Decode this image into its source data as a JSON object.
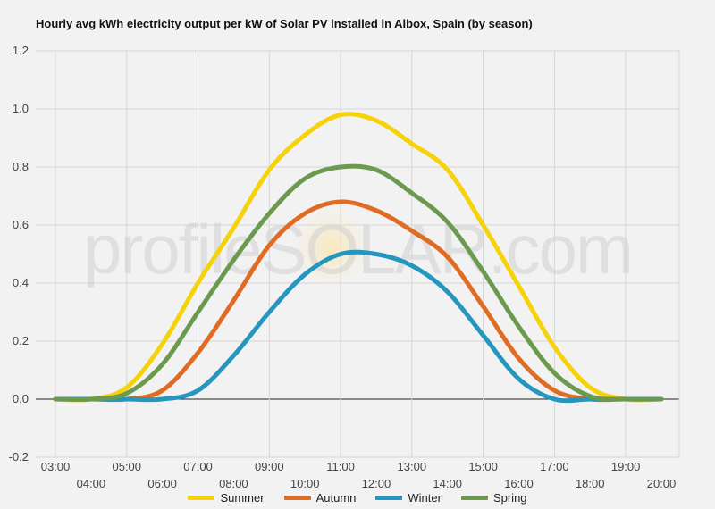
{
  "chart_data": {
    "type": "line",
    "title": "Hourly avg kWh electricity output per kW of Solar PV installed in Albox, Spain (by season)",
    "watermark": "profileSOLAR.com",
    "x_categories": [
      "03:00",
      "04:00",
      "05:00",
      "06:00",
      "07:00",
      "08:00",
      "09:00",
      "10:00",
      "11:00",
      "12:00",
      "13:00",
      "14:00",
      "15:00",
      "16:00",
      "17:00",
      "18:00",
      "19:00",
      "20:00"
    ],
    "ylim": [
      -0.2,
      1.2
    ],
    "yticks": [
      "-0.2",
      "0.0",
      "0.2",
      "0.4",
      "0.6",
      "0.8",
      "1.0",
      "1.2"
    ],
    "grid": true,
    "legend_position": "bottom",
    "series": [
      {
        "name": "Summer",
        "color": "#f5d20a",
        "values": [
          0.0,
          0.0,
          0.04,
          0.19,
          0.4,
          0.59,
          0.79,
          0.91,
          0.98,
          0.96,
          0.88,
          0.79,
          0.6,
          0.39,
          0.18,
          0.04,
          0.0,
          0.0
        ]
      },
      {
        "name": "Autumn",
        "color": "#e06c24",
        "values": [
          0.0,
          0.0,
          0.0,
          0.03,
          0.16,
          0.34,
          0.53,
          0.64,
          0.68,
          0.65,
          0.58,
          0.49,
          0.32,
          0.14,
          0.03,
          0.0,
          0.0,
          0.0
        ]
      },
      {
        "name": "Winter",
        "color": "#2596be",
        "values": [
          0.0,
          0.0,
          0.0,
          0.0,
          0.03,
          0.15,
          0.3,
          0.43,
          0.5,
          0.5,
          0.46,
          0.37,
          0.22,
          0.07,
          0.0,
          0.0,
          0.0,
          0.0
        ]
      },
      {
        "name": "Spring",
        "color": "#6b9a4e",
        "values": [
          0.0,
          0.0,
          0.02,
          0.12,
          0.3,
          0.48,
          0.64,
          0.76,
          0.8,
          0.79,
          0.71,
          0.61,
          0.44,
          0.25,
          0.09,
          0.01,
          0.0,
          0.0
        ]
      }
    ]
  }
}
